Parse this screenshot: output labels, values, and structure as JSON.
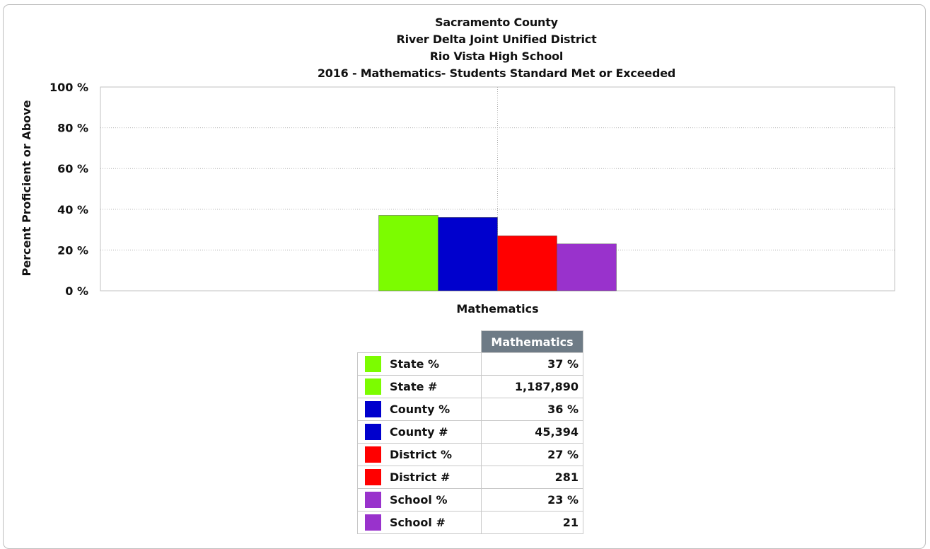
{
  "chart_data": {
    "type": "bar",
    "titles": [
      "Sacramento County",
      "River Delta Joint Unified District",
      "Rio Vista High School",
      "2016 - Mathematics- Students Standard Met or Exceeded"
    ],
    "xlabel": "Mathematics",
    "ylabel": "Percent Proficient or Above",
    "categories": [
      "Mathematics"
    ],
    "ylim": [
      0,
      100
    ],
    "yticks": [
      "0 %",
      "20 %",
      "40 %",
      "60 %",
      "80 %",
      "100 %"
    ],
    "grid": true,
    "series": [
      {
        "name": "State %",
        "values": [
          37
        ],
        "color": "#7cfc00"
      },
      {
        "name": "County %",
        "values": [
          36
        ],
        "color": "#0000cd"
      },
      {
        "name": "District %",
        "values": [
          27
        ],
        "color": "#ff0000"
      },
      {
        "name": "School %",
        "values": [
          23
        ],
        "color": "#9932cc"
      }
    ]
  },
  "table": {
    "header": "Mathematics",
    "rows": [
      {
        "label": "State %",
        "value": "37 %",
        "color": "#7cfc00"
      },
      {
        "label": "State #",
        "value": "1,187,890",
        "color": "#7cfc00"
      },
      {
        "label": "County %",
        "value": "36 %",
        "color": "#0000cd"
      },
      {
        "label": "County #",
        "value": "45,394",
        "color": "#0000cd"
      },
      {
        "label": "District %",
        "value": "27 %",
        "color": "#ff0000"
      },
      {
        "label": "District #",
        "value": "281",
        "color": "#ff0000"
      },
      {
        "label": "School %",
        "value": "23 %",
        "color": "#9932cc"
      },
      {
        "label": "School #",
        "value": "21",
        "color": "#9932cc"
      }
    ]
  }
}
